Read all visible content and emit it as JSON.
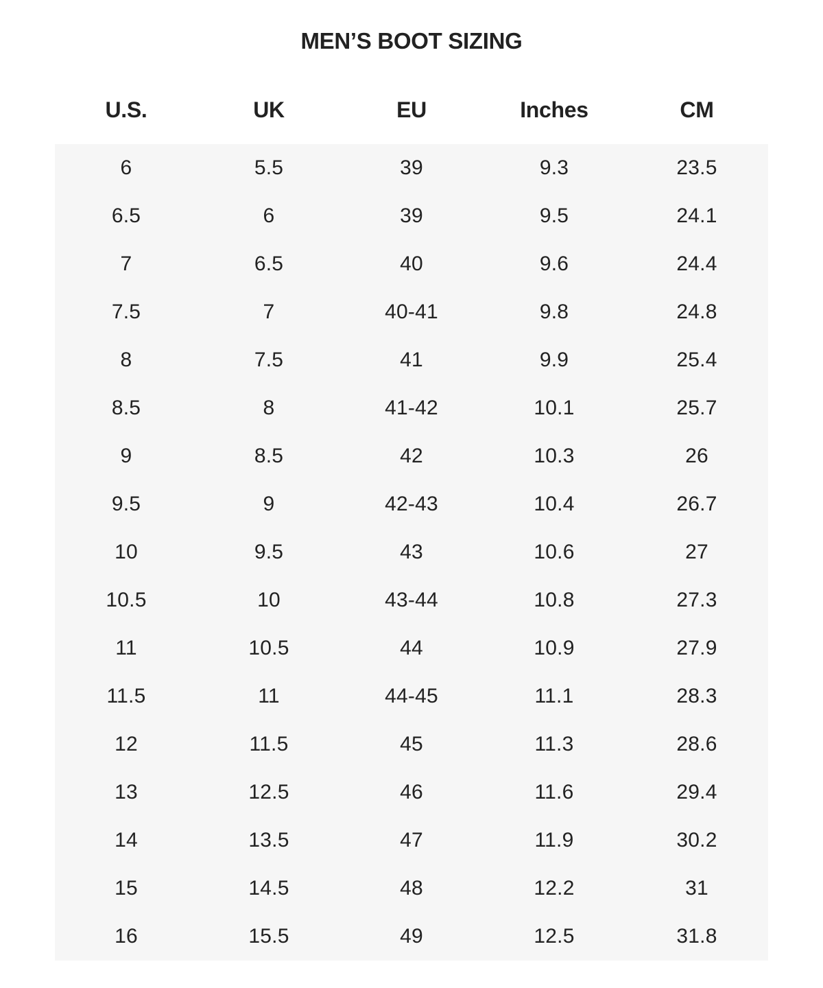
{
  "title": "MEN’S BOOT SIZING",
  "colors": {
    "text": "#222222",
    "stripe": "#f6f6f6",
    "background": "#ffffff"
  },
  "table": {
    "headers": [
      "U.S.",
      "UK",
      "EU",
      "Inches",
      "CM"
    ],
    "rows": [
      [
        "6",
        "5.5",
        "39",
        "9.3",
        "23.5"
      ],
      [
        "6.5",
        "6",
        "39",
        "9.5",
        "24.1"
      ],
      [
        "7",
        "6.5",
        "40",
        "9.6",
        "24.4"
      ],
      [
        "7.5",
        "7",
        "40-41",
        "9.8",
        "24.8"
      ],
      [
        "8",
        "7.5",
        "41",
        "9.9",
        "25.4"
      ],
      [
        "8.5",
        "8",
        "41-42",
        "10.1",
        "25.7"
      ],
      [
        "9",
        "8.5",
        "42",
        "10.3",
        "26"
      ],
      [
        "9.5",
        "9",
        "42-43",
        "10.4",
        "26.7"
      ],
      [
        "10",
        "9.5",
        "43",
        "10.6",
        "27"
      ],
      [
        "10.5",
        "10",
        "43-44",
        "10.8",
        "27.3"
      ],
      [
        "11",
        "10.5",
        "44",
        "10.9",
        "27.9"
      ],
      [
        "11.5",
        "11",
        "44-45",
        "11.1",
        "28.3"
      ],
      [
        "12",
        "11.5",
        "45",
        "11.3",
        "28.6"
      ],
      [
        "13",
        "12.5",
        "46",
        "11.6",
        "29.4"
      ],
      [
        "14",
        "13.5",
        "47",
        "11.9",
        "30.2"
      ],
      [
        "15",
        "14.5",
        "48",
        "12.2",
        "31"
      ],
      [
        "16",
        "15.5",
        "49",
        "12.5",
        "31.8"
      ]
    ]
  }
}
